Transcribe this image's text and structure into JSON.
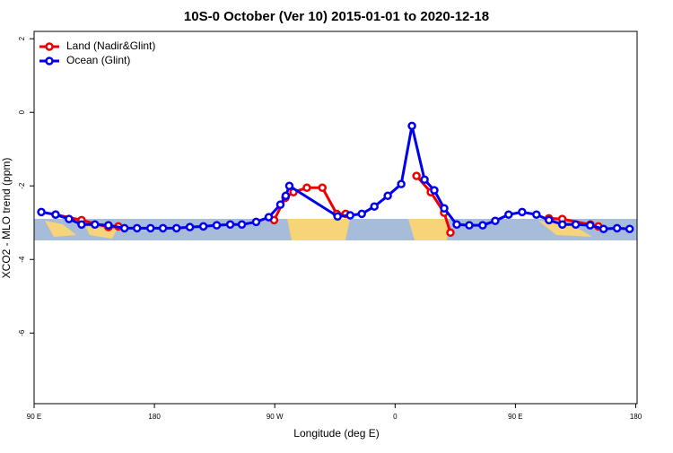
{
  "chart_data": {
    "type": "line",
    "title": "10S-0 October (Ver 10)   2015-01-01 to 2020-12-18",
    "x_label": "Longitude (deg E)",
    "y_label": "XCO2 - MLO trend (ppm)",
    "xlim": [
      90,
      541
    ],
    "ylim": [
      -7.92,
      2.2
    ],
    "xticks": [
      {
        "value": 90,
        "label": "90 E"
      },
      180,
      {
        "value": 270,
        "label": "90 W"
      },
      {
        "value": 360,
        "label": "0"
      },
      {
        "value": 450,
        "label": "90 E"
      },
      {
        "value": 540,
        "label": "180"
      }
    ],
    "yticks": [
      -6,
      -4,
      -2,
      0,
      2
    ],
    "legend": "top-left",
    "series": [
      {
        "name": "Land (Nadir&Glint)",
        "color": "#ee0000",
        "x": [
          106,
          125.5,
          145.6,
          153,
          null,
          269.5,
          278,
          284,
          294,
          305.6,
          316.3,
          323,
          null,
          376,
          386.7,
          396.7,
          401.4,
          null,
          475,
          485,
          506,
          512
        ],
        "values": [
          -2.78,
          -2.93,
          -3.12,
          -3.1,
          null,
          -2.93,
          -2.32,
          -2.17,
          -2.05,
          -2.05,
          -2.76,
          -2.76,
          null,
          -1.73,
          -2.17,
          -2.73,
          -3.27,
          null,
          -2.88,
          -2.9,
          -3.05,
          -3.1
        ]
      },
      {
        "name": "Ocean (Glint)",
        "color": "#0000ee",
        "x": [
          95.4,
          106.1,
          116.1,
          125.5,
          135.5,
          145.6,
          157.6,
          167,
          177.1,
          186.4,
          196.5,
          206.5,
          216.6,
          226.6,
          236.7,
          245.4,
          256.1,
          265.5,
          274.2,
          278.2,
          280.9,
          317,
          326.4,
          335.1,
          344.5,
          354.5,
          364.6,
          372.6,
          382,
          389.3,
          396.7,
          406.1,
          415.5,
          425.5,
          434.9,
          444.9,
          455,
          465.7,
          475.1,
          485.1,
          495.1,
          505.9,
          515.9,
          526,
          535.4
        ],
        "values": [
          -2.71,
          -2.78,
          -2.9,
          -3.05,
          -3.05,
          -3.07,
          -3.15,
          -3.15,
          -3.15,
          -3.15,
          -3.15,
          -3.12,
          -3.1,
          -3.07,
          -3.05,
          -3.05,
          -2.98,
          -2.85,
          -2.51,
          -2.27,
          -2.0,
          -2.83,
          -2.8,
          -2.76,
          -2.56,
          -2.27,
          -1.95,
          -0.37,
          -1.83,
          -2.12,
          -2.61,
          -3.05,
          -3.07,
          -3.07,
          -2.95,
          -2.78,
          -2.71,
          -2.78,
          -2.93,
          -3.05,
          -3.05,
          -3.07,
          -3.17,
          -3.15,
          -3.17
        ]
      }
    ]
  }
}
